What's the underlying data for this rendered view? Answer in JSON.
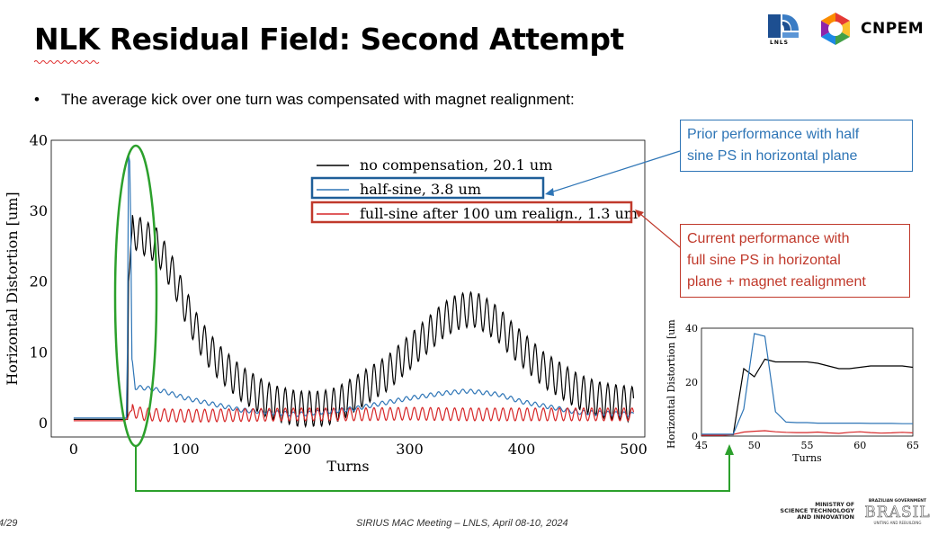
{
  "slide": {
    "title": "NLK Residual Field: Second Attempt",
    "bullet": "The average kick over one turn was compensated with magnet realignment:",
    "footer_meeting": "SIRIUS MAC Meeting –  LNLS, April 08-10, 2024",
    "footer_page": "4/29"
  },
  "logos": {
    "lnls": "LNLS",
    "cnpem": "CNPEM",
    "ministry_line1": "MINISTRY OF",
    "ministry_line2": "SCIENCE TECHNOLOGY",
    "ministry_line3": "AND INNOVATION",
    "brazil_gov": "BRAZILIAN GOVERNMENT",
    "brasil": "BRASIL",
    "brasil_tagline": "UNITING AND REBUILDING"
  },
  "callouts": {
    "prior": "Prior performance with half sine PS in horizontal plane",
    "prior_lines": [
      "Prior performance with half",
      "sine PS in horizontal plane"
    ],
    "current_lines": [
      "Current performance with",
      "full sine PS in horizontal",
      "plane + magnet realignment"
    ]
  },
  "colors": {
    "no_compensation": "#000000",
    "half_sine": "#2e75b6",
    "full_sine": "#d62728",
    "ellipse": "#2ca02c",
    "callout_blue": "#2e75b6",
    "callout_red": "#c0392b"
  },
  "chart_data": [
    {
      "type": "line",
      "title": "",
      "xlabel": "Turns",
      "ylabel": "Horizontal Distortion [um]",
      "xlim": [
        -20,
        510
      ],
      "ylim": [
        -2,
        40
      ],
      "xticks": [
        0,
        100,
        200,
        300,
        400,
        500
      ],
      "yticks": [
        0,
        10,
        20,
        30,
        40
      ],
      "legend": "top-center",
      "series": [
        {
          "name": "no compensation, 20.1 um",
          "color": "#000000",
          "oscillation": 2.5,
          "x": [
            0,
            48,
            49,
            50,
            51,
            52,
            55,
            60,
            65,
            70,
            75,
            80,
            90,
            100,
            110,
            120,
            130,
            140,
            150,
            160,
            170,
            180,
            190,
            200,
            210,
            220,
            230,
            240,
            250,
            260,
            270,
            280,
            290,
            300,
            310,
            320,
            330,
            340,
            350,
            360,
            370,
            380,
            390,
            400,
            410,
            420,
            430,
            440,
            450,
            460,
            470,
            480,
            490,
            500
          ],
          "y": [
            0.5,
            0.5,
            20,
            22,
            25,
            27,
            27,
            26.5,
            26,
            25.5,
            25,
            23.5,
            20.5,
            16.5,
            13,
            10.5,
            8.5,
            7,
            5.5,
            4.5,
            3.5,
            2.8,
            2.4,
            2.0,
            2.0,
            2.0,
            2.3,
            3.0,
            4.0,
            5.0,
            6.0,
            7.0,
            8.5,
            10,
            11.5,
            13,
            14.5,
            15.5,
            16,
            16,
            15,
            13.8,
            12,
            10.5,
            9,
            7.5,
            6.5,
            5.5,
            4.5,
            3.8,
            3.3,
            3,
            2.8,
            2.6
          ]
        },
        {
          "name": "half-sine, 3.8 um",
          "color": "#2e75b6",
          "oscillation": 0.3,
          "x": [
            0,
            47,
            48,
            49,
            50,
            51,
            52,
            55,
            60,
            70,
            80,
            100,
            120,
            150,
            200,
            250,
            300,
            330,
            350,
            360,
            380,
            400,
            450,
            500
          ],
          "y": [
            0.7,
            0.7,
            10,
            38,
            37,
            28,
            9,
            5,
            5,
            4.8,
            4.5,
            3.5,
            2.8,
            1.8,
            1.2,
            2,
            3.5,
            4.2,
            4.5,
            4.4,
            4,
            3,
            1.5,
            1.2
          ]
        },
        {
          "name": "full-sine after 100 um realign., 1.3 um",
          "color": "#d62728",
          "oscillation": 0.9,
          "x": [
            0,
            45,
            48,
            50,
            52,
            55,
            60,
            65,
            80,
            100,
            150,
            200,
            250,
            300,
            350,
            400,
            450,
            500
          ],
          "y": [
            0.3,
            0.3,
            0.6,
            1.5,
            1.8,
            1.6,
            1.3,
            1.2,
            1.1,
            1.0,
            1.1,
            1.2,
            1.2,
            1.3,
            1.2,
            1.2,
            1.2,
            1.2
          ]
        }
      ]
    },
    {
      "type": "line",
      "title": "",
      "xlabel": "Turns",
      "ylabel": "Horizontal Distortion [um]",
      "xlim": [
        45,
        65
      ],
      "ylim": [
        0,
        40
      ],
      "xticks": [
        45,
        50,
        55,
        60,
        65
      ],
      "yticks": [
        0,
        20,
        40
      ],
      "series": [
        {
          "color": "#000000",
          "x": [
            45,
            46,
            47,
            48,
            49,
            50,
            51,
            52,
            53,
            54,
            55,
            56,
            57,
            58,
            59,
            60,
            61,
            62,
            63,
            64,
            65
          ],
          "y": [
            0.5,
            0.5,
            0.5,
            0.5,
            25,
            22,
            28.5,
            27.5,
            27.5,
            27.5,
            27.5,
            27,
            26,
            25,
            25,
            25.5,
            26,
            26,
            26,
            26,
            25.5
          ]
        },
        {
          "color": "#2e75b6",
          "x": [
            45,
            46,
            47,
            48,
            49,
            50,
            51,
            52,
            53,
            54,
            55,
            56,
            57,
            58,
            59,
            60,
            61,
            62,
            63,
            64,
            65
          ],
          "y": [
            0.7,
            0.7,
            0.7,
            0.7,
            10,
            38,
            37,
            9,
            5.2,
            5.0,
            5.0,
            4.8,
            4.8,
            4.8,
            4.8,
            4.8,
            4.7,
            4.7,
            4.7,
            4.6,
            4.6
          ]
        },
        {
          "color": "#d62728",
          "x": [
            45,
            46,
            47,
            48,
            49,
            50,
            51,
            52,
            53,
            54,
            55,
            56,
            57,
            58,
            59,
            60,
            61,
            62,
            63,
            64,
            65
          ],
          "y": [
            0.3,
            0.3,
            0.3,
            0.6,
            1.5,
            1.8,
            2.0,
            1.6,
            1.4,
            1.3,
            1.3,
            1.5,
            1.2,
            1.0,
            1.4,
            1.6,
            1.3,
            1.1,
            1.2,
            1.4,
            1.2
          ]
        }
      ]
    }
  ]
}
